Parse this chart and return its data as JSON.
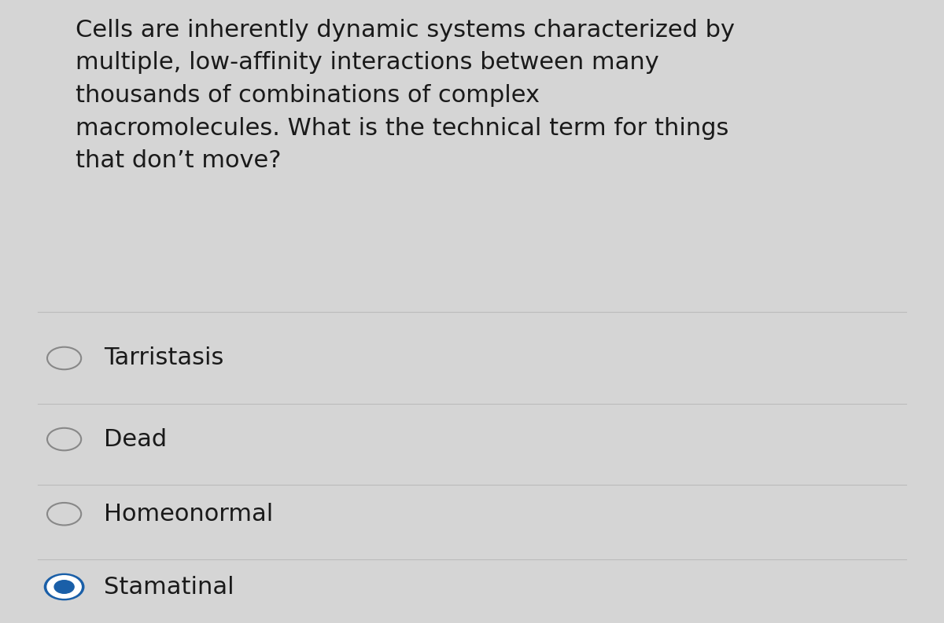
{
  "background_color": "#d5d5d5",
  "question_text": "Cells are inherently dynamic systems characterized by\nmultiple, low-affinity interactions between many\nthousands of combinations of complex\nmacromolecules. What is the technical term for things\nthat don’t move?",
  "options": [
    "Tarristasis",
    "Dead",
    "Homeonormal",
    "Stamatinal"
  ],
  "selected_index": 3,
  "text_color": "#1a1a1a",
  "option_text_color": "#1a1a1a",
  "circle_color_unselected": "#888888",
  "circle_color_selected_outer": "#1a5fa8",
  "circle_color_selected_inner": "#1a5fa8",
  "separator_color": "#bbbbbb",
  "question_font_size": 22,
  "option_font_size": 22,
  "figwidth": 12.0,
  "figheight": 7.93
}
